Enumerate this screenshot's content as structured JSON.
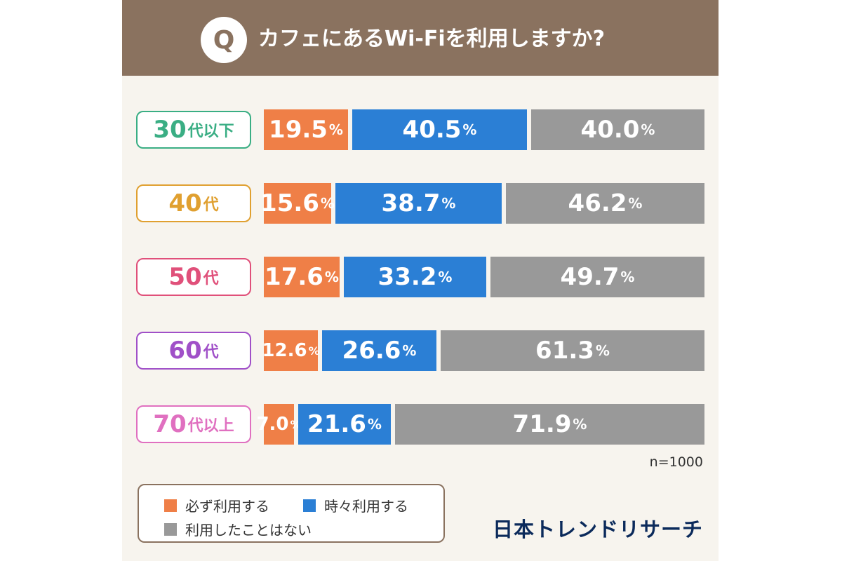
{
  "header": {
    "q_mark": "Q",
    "question": "カフェにあるWi-Fiを利用しますか?",
    "bg_color": "#8a725f"
  },
  "chart_data": {
    "type": "bar",
    "stacked": true,
    "orientation": "horizontal",
    "title": "カフェにあるWi-Fiを利用しますか?",
    "unit": "%",
    "categories": [
      {
        "num": "30",
        "suffix": "代以下",
        "color": "#3aae84"
      },
      {
        "num": "40",
        "suffix": "代",
        "color": "#e0a030"
      },
      {
        "num": "50",
        "suffix": "代",
        "color": "#e0507a"
      },
      {
        "num": "60",
        "suffix": "代",
        "color": "#a050c8"
      },
      {
        "num": "70",
        "suffix": "代以上",
        "color": "#e070c0"
      }
    ],
    "series": [
      {
        "name": "必ず利用する",
        "color": "#ef7f47",
        "values": [
          19.5,
          15.6,
          17.6,
          12.6,
          7.0
        ]
      },
      {
        "name": "時々利用する",
        "color": "#2b7fd5",
        "values": [
          40.5,
          38.7,
          33.2,
          26.6,
          21.6
        ]
      },
      {
        "name": "利用したことはない",
        "color": "#999999",
        "values": [
          40.0,
          46.2,
          49.7,
          61.3,
          71.9
        ]
      }
    ],
    "note": "n=1000"
  },
  "footer": {
    "brand": "日本トレンドリサーチ"
  }
}
